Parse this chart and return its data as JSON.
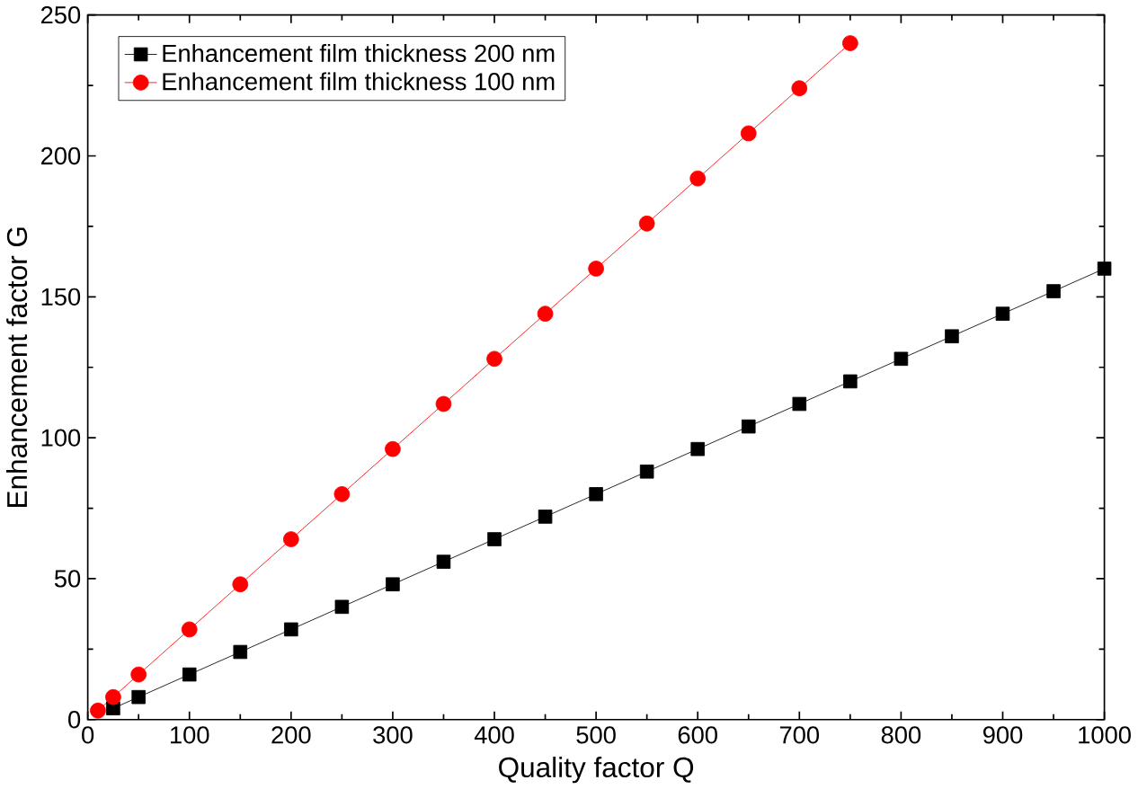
{
  "chart_data": {
    "type": "line",
    "xlabel": "Quality factor Q",
    "ylabel": "Enhancement factor G",
    "xlim": [
      0,
      1000
    ],
    "ylim": [
      0,
      250
    ],
    "xticks": [
      0,
      100,
      200,
      300,
      400,
      500,
      600,
      700,
      800,
      900,
      1000
    ],
    "yticks": [
      0,
      50,
      100,
      150,
      200,
      250
    ],
    "grid": false,
    "legend": "top left",
    "series": [
      {
        "name": "Enhancement film thickness 200 nm",
        "color": "#000000",
        "marker": "square",
        "x": [
          25,
          50,
          100,
          150,
          200,
          250,
          300,
          350,
          400,
          450,
          500,
          550,
          600,
          650,
          700,
          750,
          800,
          850,
          900,
          950,
          1000
        ],
        "values": [
          4,
          8,
          16,
          24,
          32,
          40,
          48,
          56,
          64,
          72,
          80,
          88,
          96,
          104,
          112,
          120,
          128,
          136,
          144,
          152,
          160
        ]
      },
      {
        "name": "Enhancement film thickness 100 nm",
        "color": "#ff0000",
        "marker": "circle",
        "x": [
          10,
          25,
          50,
          100,
          150,
          200,
          250,
          300,
          350,
          400,
          450,
          500,
          550,
          600,
          650,
          700,
          750
        ],
        "values": [
          3.2,
          8,
          16,
          32,
          48,
          64,
          80,
          96,
          112,
          128,
          144,
          160,
          176,
          192,
          208,
          224,
          240
        ]
      }
    ]
  }
}
